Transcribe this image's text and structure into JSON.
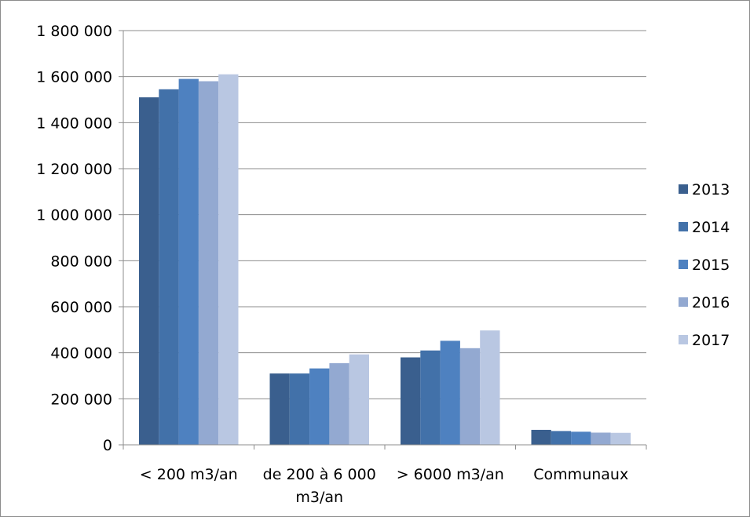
{
  "chart_data": {
    "type": "bar",
    "categories": [
      [
        "< 200 m3/an"
      ],
      [
        "de 200 à 6 000",
        "m3/an"
      ],
      [
        "> 6000 m3/an"
      ],
      [
        "Communaux"
      ]
    ],
    "series": [
      {
        "name": "2013",
        "color": "#3a5f8e",
        "values": [
          1510000,
          310000,
          380000,
          65000
        ]
      },
      {
        "name": "2014",
        "color": "#4271a9",
        "values": [
          1545000,
          310000,
          410000,
          60000
        ]
      },
      {
        "name": "2015",
        "color": "#4e81c0",
        "values": [
          1590000,
          332000,
          452000,
          57000
        ]
      },
      {
        "name": "2016",
        "color": "#93a9d1",
        "values": [
          1580000,
          355000,
          420000,
          53000
        ]
      },
      {
        "name": "2017",
        "color": "#b9c7e2",
        "values": [
          1610000,
          393000,
          497000,
          52000
        ]
      }
    ],
    "y_ticks": [
      {
        "value": 0,
        "label": "0"
      },
      {
        "value": 200000,
        "label": "200 000"
      },
      {
        "value": 400000,
        "label": "400 000"
      },
      {
        "value": 600000,
        "label": "600 000"
      },
      {
        "value": 800000,
        "label": "800 000"
      },
      {
        "value": 1000000,
        "label": "1 000 000"
      },
      {
        "value": 1200000,
        "label": "1 200 000"
      },
      {
        "value": 1400000,
        "label": "1 400 000"
      },
      {
        "value": 1600000,
        "label": "1 600 000"
      },
      {
        "value": 1800000,
        "label": "1 800 000"
      }
    ],
    "ylim": [
      0,
      1800000
    ],
    "grid": true,
    "legend_position": "right",
    "title": "",
    "xlabel": "",
    "ylabel": ""
  }
}
